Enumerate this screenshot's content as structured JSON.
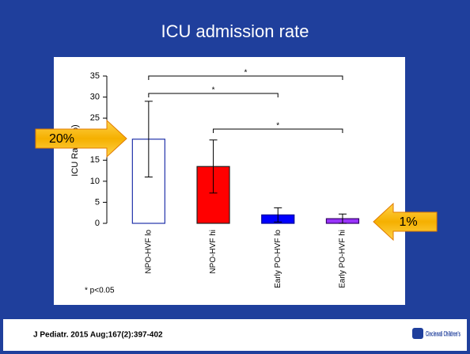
{
  "title": "ICU admission rate",
  "chart_data": {
    "type": "bar",
    "y_label": "ICU Rate (%)",
    "categories": [
      "NPO-HVF lo",
      "NPO-HVF hi",
      "Early PO-HVF lo",
      "Early PO-HVF hi"
    ],
    "values": [
      20,
      13.5,
      2,
      1.1
    ],
    "errors": [
      9,
      6.3,
      1.7,
      1.1
    ],
    "colors": [
      "#ffffff",
      "#ff0000",
      "#0000ff",
      "#9933ff"
    ],
    "edge_colors": [
      "#2233aa",
      "#222222",
      "#000099",
      "#330066"
    ],
    "ylim": [
      0,
      35
    ],
    "yticks": [
      0,
      5,
      10,
      15,
      20,
      25,
      30,
      35
    ],
    "brackets": [
      {
        "from": 0,
        "to": 3,
        "label": "*"
      },
      {
        "from": 0,
        "to": 2,
        "label": "*"
      },
      {
        "from": 1,
        "to": 3,
        "label": "*"
      }
    ],
    "note": "* p<0.05",
    "callouts": [
      {
        "text": "20%"
      },
      {
        "text": "1%"
      }
    ]
  },
  "footer": {
    "citation": "J Pediatr. 2015 Aug;167(2):397-402",
    "logo": "Cincinnati Children's"
  }
}
